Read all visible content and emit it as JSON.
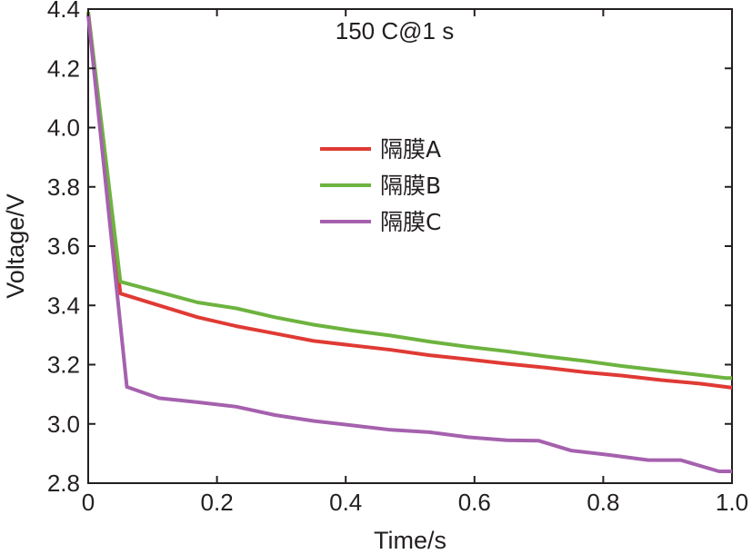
{
  "chart_data": {
    "type": "line",
    "title": "",
    "annotation": "150 C@1 s",
    "xlabel": "Time/s",
    "ylabel": "Voltage/V",
    "xlim": [
      0,
      1.0
    ],
    "ylim": [
      2.8,
      4.4
    ],
    "xticks": [
      0,
      0.2,
      0.4,
      0.6,
      0.8,
      1.0
    ],
    "xtick_labels": [
      "0",
      "0.2",
      "0.4",
      "0.6",
      "0.8",
      "1.0"
    ],
    "yticks": [
      2.8,
      3.0,
      3.2,
      3.4,
      3.6,
      3.8,
      4.0,
      4.2,
      4.4
    ],
    "ytick_labels": [
      "2.8",
      "3.0",
      "3.2",
      "3.4",
      "3.6",
      "3.8",
      "4.0",
      "4.2",
      "4.4"
    ],
    "grid": false,
    "legend_position": "center",
    "series": [
      {
        "name": "隔膜A",
        "color": "#e03a34",
        "x": [
          0,
          0.05,
          0.11,
          0.17,
          0.23,
          0.29,
          0.35,
          0.41,
          0.47,
          0.53,
          0.59,
          0.65,
          0.71,
          0.77,
          0.83,
          0.89,
          0.95,
          1.0
        ],
        "y": [
          4.39,
          3.44,
          3.4,
          3.36,
          3.33,
          3.305,
          3.28,
          3.265,
          3.25,
          3.232,
          3.218,
          3.203,
          3.19,
          3.175,
          3.163,
          3.148,
          3.136,
          3.122
        ]
      },
      {
        "name": "隔膜B",
        "color": "#6db33f",
        "x": [
          0,
          0.05,
          0.11,
          0.17,
          0.23,
          0.29,
          0.35,
          0.41,
          0.47,
          0.53,
          0.59,
          0.65,
          0.71,
          0.77,
          0.83,
          0.89,
          0.95,
          0.99,
          1.0
        ],
        "y": [
          4.39,
          3.48,
          3.445,
          3.41,
          3.39,
          3.36,
          3.335,
          3.315,
          3.298,
          3.278,
          3.26,
          3.245,
          3.228,
          3.213,
          3.195,
          3.18,
          3.165,
          3.155,
          3.155
        ]
      },
      {
        "name": "隔膜C",
        "color": "#a561ae",
        "x": [
          0,
          0.06,
          0.11,
          0.17,
          0.23,
          0.29,
          0.35,
          0.41,
          0.47,
          0.53,
          0.59,
          0.65,
          0.7,
          0.75,
          0.81,
          0.87,
          0.92,
          0.98,
          1.0
        ],
        "y": [
          4.38,
          3.125,
          3.087,
          3.073,
          3.058,
          3.03,
          3.01,
          2.995,
          2.98,
          2.972,
          2.955,
          2.945,
          2.943,
          2.91,
          2.895,
          2.878,
          2.878,
          2.84,
          2.84
        ]
      }
    ]
  }
}
